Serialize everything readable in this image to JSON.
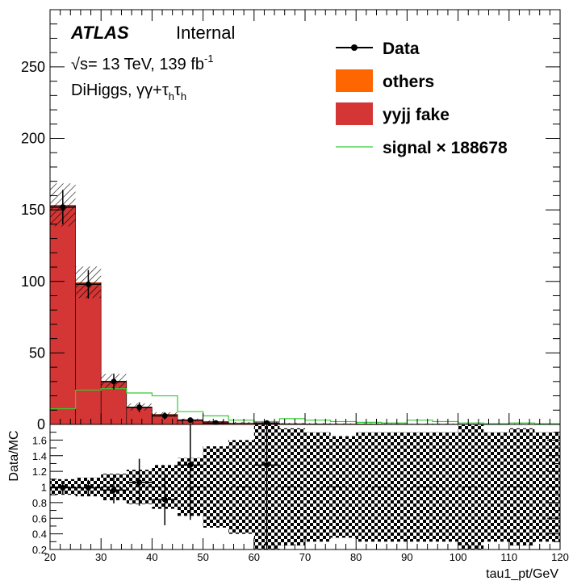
{
  "atlas": {
    "label": "ATLAS",
    "status": "Internal",
    "energy_line": "√s= 13 TeV, 139 fb",
    "lumi_exp": "-1",
    "channel": "DiHiggs, γγ+τ",
    "channel_sub1": "h",
    "channel_mid": "τ",
    "channel_sub2": "h"
  },
  "legend": {
    "data": "Data",
    "others": "others",
    "yyjj": "yyjj fake",
    "signal": "signal × 188678"
  },
  "colors": {
    "yyjj_fill": "#d43535",
    "others_fill": "#ff6600",
    "signal_line": "#33cc33",
    "data": "#000000"
  },
  "chart_data": [
    {
      "type": "bar",
      "title": "",
      "xlabel": "",
      "ylabel": "",
      "xlim": [
        20,
        120
      ],
      "ylim": [
        0,
        290
      ],
      "y_ticks": [
        0,
        50,
        100,
        150,
        200,
        250
      ],
      "bin_edges": [
        20,
        25,
        30,
        35,
        40,
        45,
        50,
        55,
        60,
        65,
        70,
        75,
        80,
        85,
        90,
        95,
        100,
        105,
        110,
        115,
        120
      ],
      "series": [
        {
          "name": "yyjj fake",
          "values": [
            153,
            99,
            30,
            12,
            7,
            3,
            2,
            1,
            1,
            0.5,
            0.4,
            0.3,
            0.3,
            0.2,
            0.2,
            0.2,
            0.1,
            0.1,
            0.1,
            0.1
          ]
        },
        {
          "name": "others",
          "values": [
            0.5,
            0.4,
            0.3,
            0.2,
            0.1,
            0.1,
            0.1,
            0.1,
            0.1,
            0.1,
            0.1,
            0.1,
            0.1,
            0.1,
            0.1,
            0.1,
            0.1,
            0.1,
            0.1,
            0.1
          ]
        },
        {
          "name": "signal × 188678",
          "values": [
            11,
            24,
            25,
            22,
            20,
            9,
            6,
            3,
            2,
            4,
            3,
            2,
            1.5,
            1,
            3,
            2,
            1,
            0.5,
            1,
            0.5
          ]
        },
        {
          "name": "Data",
          "x": [
            22.5,
            27.5,
            32.5,
            37.5,
            42.5,
            47.5,
            52.5,
            62.5
          ],
          "values": [
            152,
            98,
            30,
            12,
            6,
            3,
            1,
            1
          ]
        }
      ],
      "mc_uncertainty": [
        15,
        11,
        5,
        2.5,
        1.5,
        1,
        0.8,
        0.6,
        0.6,
        0.5,
        0.5,
        0.4,
        0.4,
        0.3,
        0.3,
        0.3,
        0.3,
        0.3,
        0.3,
        0.3
      ],
      "data_errors": [
        12,
        10,
        5.5,
        3.5,
        2.5,
        1.7,
        1,
        1
      ]
    },
    {
      "type": "scatter",
      "title": "",
      "xlabel": "tau1_pt/GeV",
      "ylabel": "Data/MC",
      "xlim": [
        20,
        120
      ],
      "ylim": [
        0.2,
        1.8
      ],
      "y_ticks": [
        0.2,
        0.4,
        0.6,
        0.8,
        1,
        1.2,
        1.4,
        1.6
      ],
      "x_ticks": [
        20,
        30,
        40,
        50,
        60,
        70,
        80,
        90,
        100,
        110,
        120
      ],
      "points": [
        {
          "x": 22.5,
          "y": 0.99,
          "yerr": 0.08
        },
        {
          "x": 27.5,
          "y": 0.99,
          "yerr": 0.1
        },
        {
          "x": 32.5,
          "y": 0.96,
          "yerr": 0.17
        },
        {
          "x": 37.5,
          "y": 1.06,
          "yerr": 0.3
        },
        {
          "x": 42.5,
          "y": 0.84,
          "yerr": 0.33
        },
        {
          "x": 47.5,
          "y": 1.28,
          "yerr": 0.7
        },
        {
          "x": 62.5,
          "y": 1.28,
          "yerr": 1.2
        }
      ],
      "band_halfwidth": [
        0.1,
        0.12,
        0.17,
        0.22,
        0.28,
        0.37,
        0.52,
        0.6,
        0.8,
        0.75,
        0.7,
        0.65,
        0.7,
        0.7,
        0.7,
        0.7,
        0.8,
        0.7,
        0.75,
        0.7
      ]
    }
  ]
}
